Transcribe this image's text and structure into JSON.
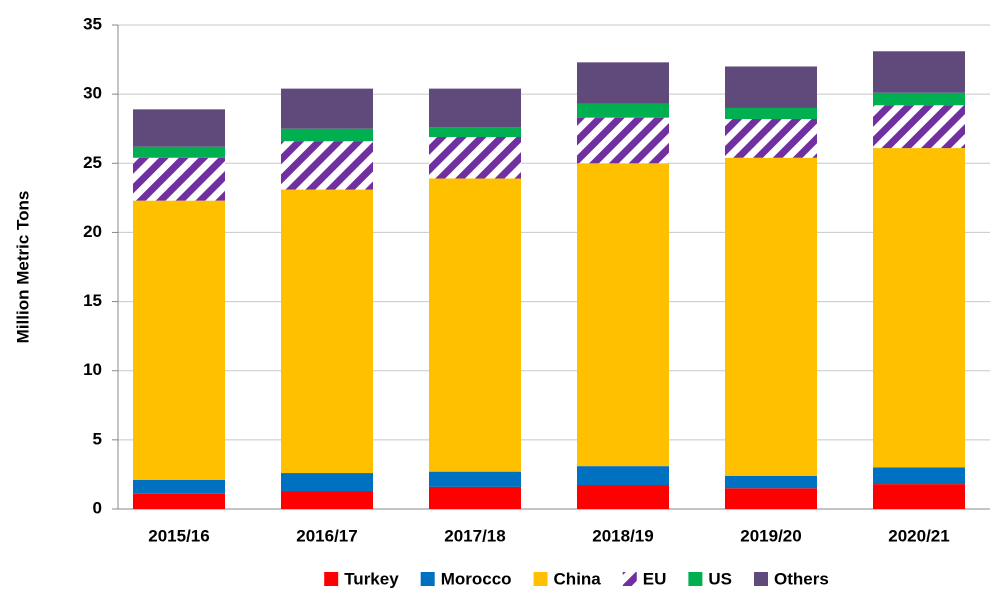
{
  "chart_data": {
    "type": "stacked_bar",
    "y_label": "Million Metric Tons",
    "categories": [
      "2015/16",
      "2016/17",
      "2017/18",
      "2018/19",
      "2019/20",
      "2020/21"
    ],
    "series": [
      {
        "name": "Turkey",
        "color": "#ff0000",
        "values": [
          1.1,
          1.3,
          1.6,
          1.7,
          1.5,
          1.8
        ]
      },
      {
        "name": "Morocco",
        "color": "#0070c0",
        "values": [
          1.0,
          1.3,
          1.1,
          1.4,
          0.9,
          1.2
        ]
      },
      {
        "name": "China",
        "color": "#ffc000",
        "values": [
          20.2,
          20.5,
          21.2,
          21.9,
          23.0,
          23.1
        ]
      },
      {
        "name": "EU",
        "color": "#7030a0",
        "pattern": "hatch",
        "values": [
          3.1,
          3.5,
          3.0,
          3.3,
          2.8,
          3.1
        ]
      },
      {
        "name": "US",
        "color": "#00b050",
        "values": [
          0.8,
          0.9,
          0.7,
          1.0,
          0.8,
          0.9
        ]
      },
      {
        "name": "Others",
        "color": "#604a7b",
        "values": [
          2.7,
          2.9,
          2.8,
          3.0,
          3.0,
          3.0
        ]
      }
    ],
    "ylim": [
      0,
      35
    ],
    "yticks": [
      0,
      5,
      10,
      15,
      20,
      25,
      30,
      35
    ],
    "grid": true,
    "legend": "bottom"
  }
}
